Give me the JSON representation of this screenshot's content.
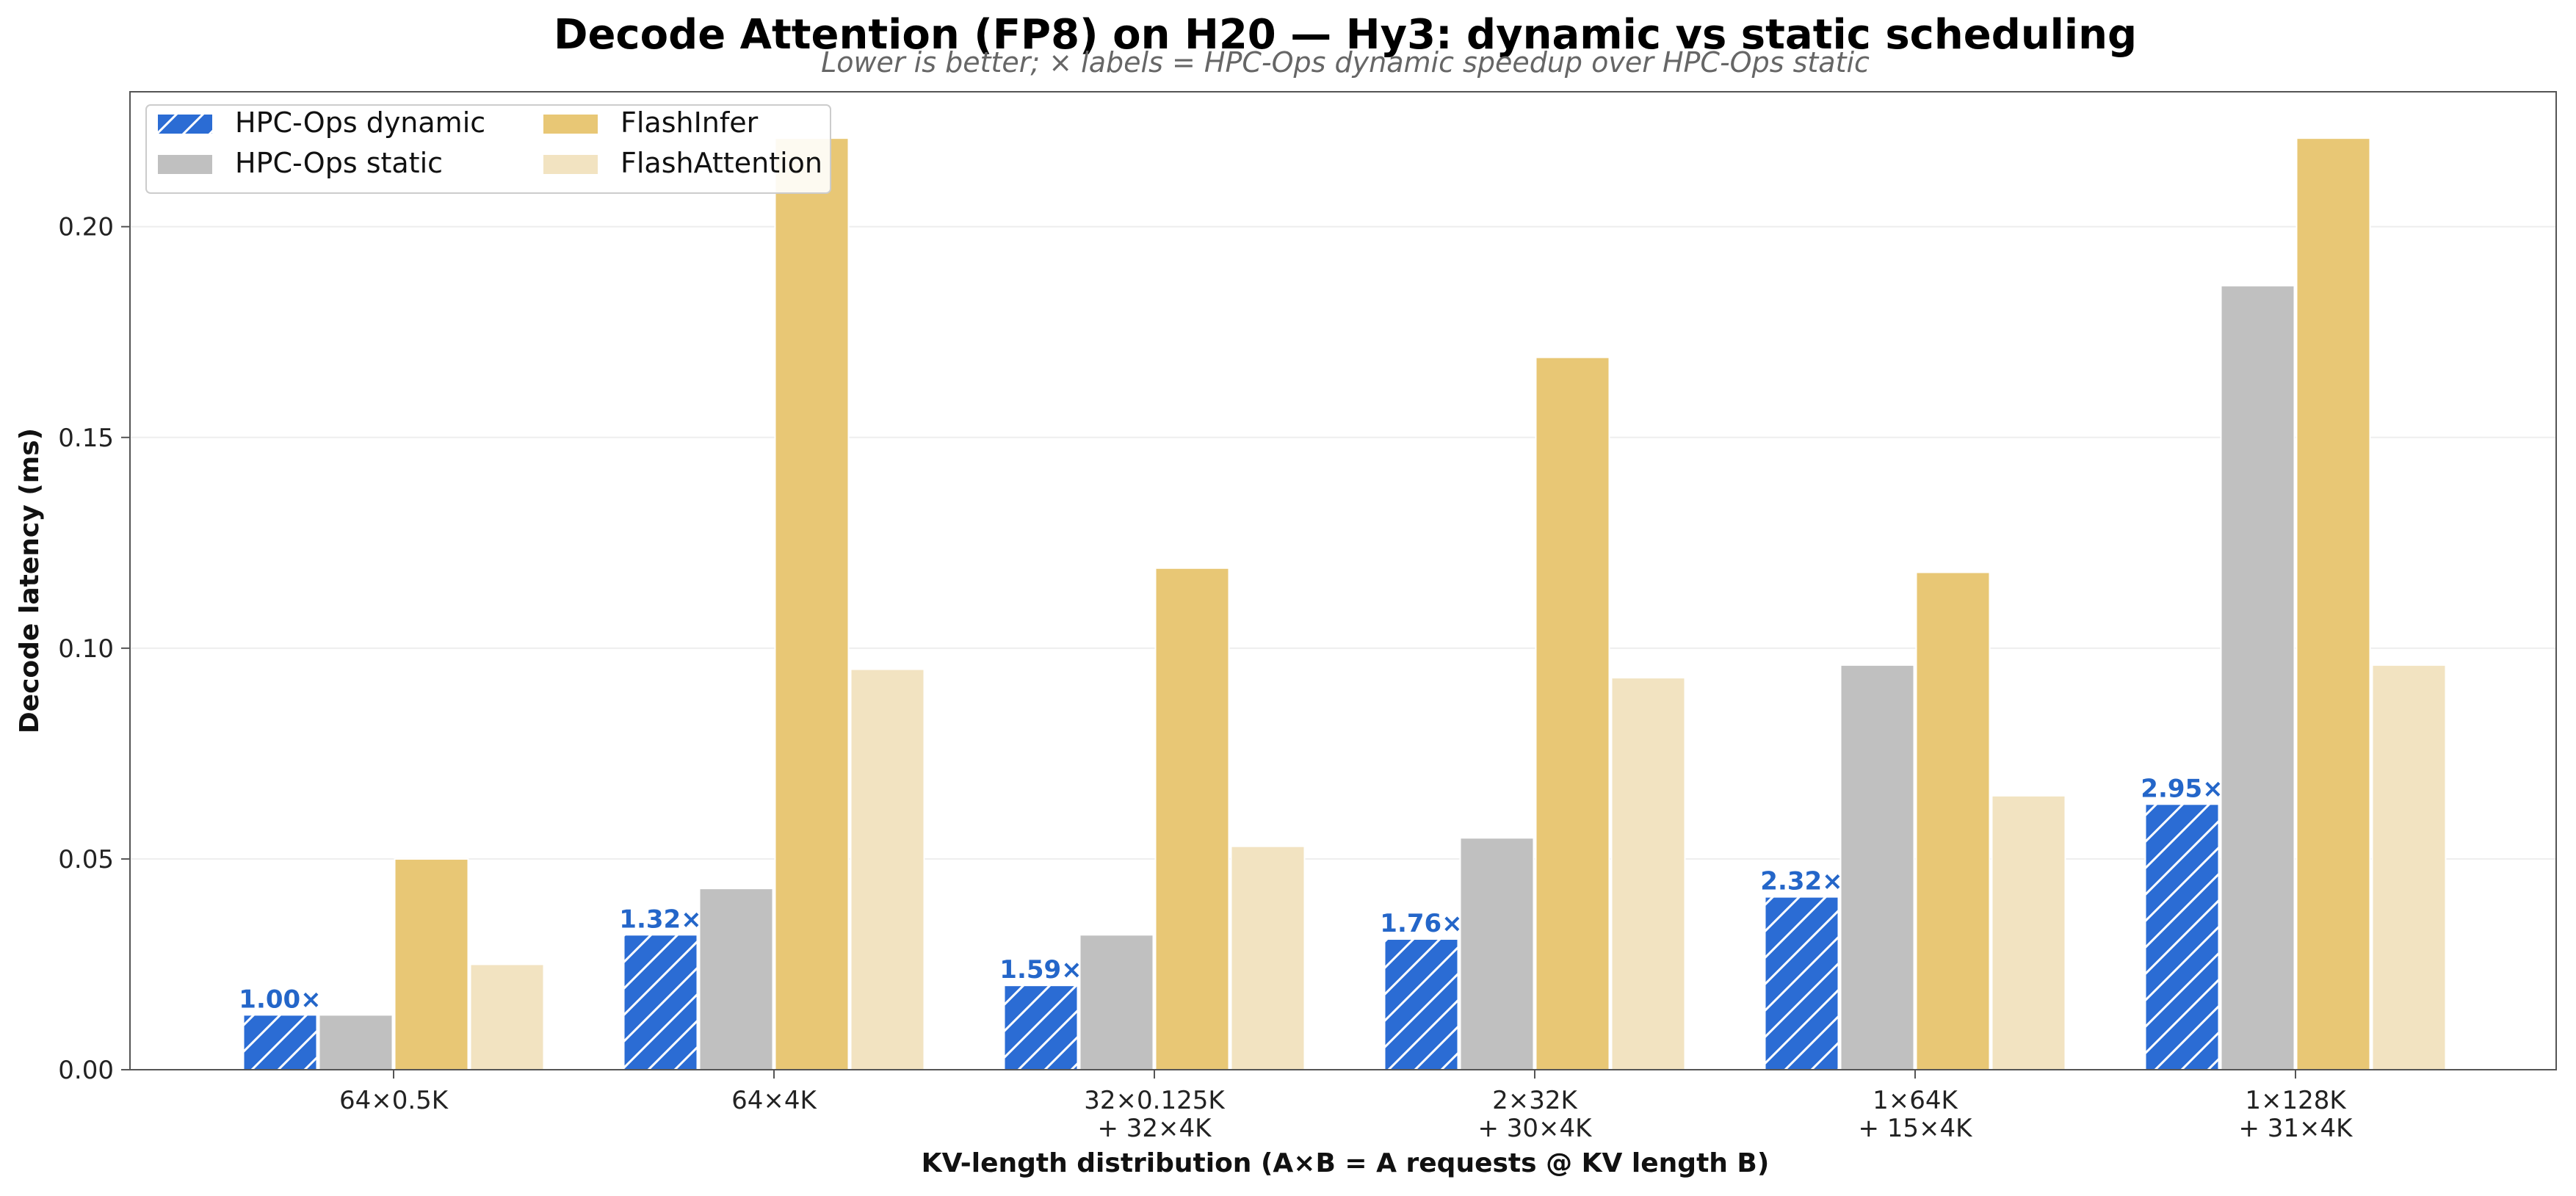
{
  "chart_data": {
    "type": "bar",
    "title": "Decode Attention (FP8) on H20 — Hy3: dynamic vs static scheduling",
    "subtitle": "Lower is better; × labels = HPC-Ops dynamic speedup over HPC-Ops static",
    "xlabel": "KV-length distribution (A×B = A requests @ KV length B)",
    "ylabel": "Decode latency (ms)",
    "ylim": [
      0,
      0.232
    ],
    "yticks": [
      "0.00",
      "0.05",
      "0.10",
      "0.15",
      "0.20"
    ],
    "ytick_values": [
      0,
      0.05,
      0.1,
      0.15,
      0.2
    ],
    "grid": "horizontal",
    "legend_placement": "top-left",
    "categories": [
      [
        "64×0.5K"
      ],
      [
        "64×4K"
      ],
      [
        "32×0.125K",
        "+ 32×4K"
      ],
      [
        "2×32K",
        "+ 30×4K"
      ],
      [
        "1×64K",
        "+ 15×4K"
      ],
      [
        "1×128K",
        "+ 31×4K"
      ]
    ],
    "series": [
      {
        "name": "HPC-Ops dynamic",
        "color": "#2b6cd4",
        "hatch": true,
        "values": [
          0.013,
          0.032,
          0.02,
          0.031,
          0.041,
          0.063
        ]
      },
      {
        "name": "HPC-Ops static",
        "color": "#c0c0c0",
        "hatch": false,
        "values": [
          0.013,
          0.043,
          0.032,
          0.055,
          0.096,
          0.186
        ]
      },
      {
        "name": "FlashInfer",
        "color": "#e8c775",
        "hatch": false,
        "values": [
          0.05,
          0.221,
          0.119,
          0.169,
          0.118,
          0.221
        ]
      },
      {
        "name": "FlashAttention",
        "color": "#f2e3c1",
        "hatch": false,
        "values": [
          0.025,
          0.095,
          0.053,
          0.093,
          0.065,
          0.096
        ]
      }
    ],
    "speedup_labels": [
      "1.00×",
      "1.32×",
      "1.59×",
      "1.76×",
      "2.32×",
      "2.95×"
    ],
    "speedup_label_color": "#2466c9"
  }
}
